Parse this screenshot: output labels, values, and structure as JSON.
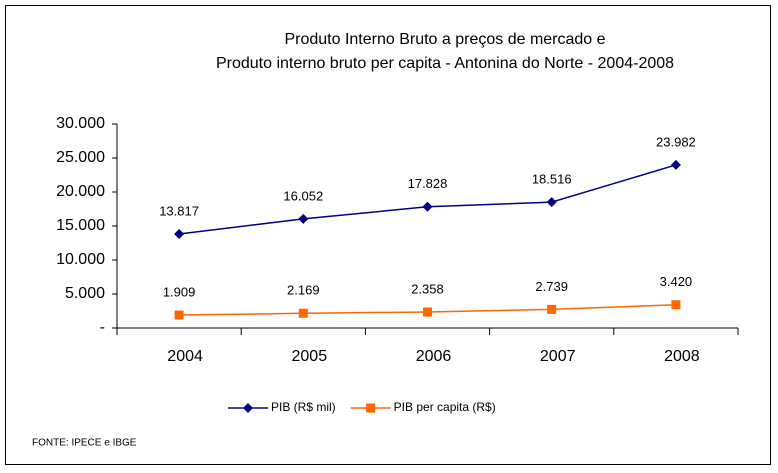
{
  "chart_data": {
    "type": "line",
    "title": [
      "Produto Interno Bruto a preços de mercado  e",
      "Produto interno bruto per capita - Antonina do Norte  - 2004-2008"
    ],
    "categories": [
      "2004",
      "2005",
      "2006",
      "2007",
      "2008"
    ],
    "series": [
      {
        "name": "PIB (R$ mil)",
        "color": "#000080",
        "marker": "diamond",
        "values": [
          13817,
          16052,
          17828,
          18516,
          23982
        ],
        "value_labels": [
          "13.817",
          "16.052",
          "17.828",
          "18.516",
          "23.982"
        ]
      },
      {
        "name": "PIB per capita (R$)",
        "color": "#ff6600",
        "marker": "square",
        "values": [
          1909,
          2169,
          2358,
          2739,
          3420
        ],
        "value_labels": [
          "1.909",
          "2.169",
          "2.358",
          "2.739",
          "3.420"
        ]
      }
    ],
    "ylim": [
      0,
      30000
    ],
    "yticks": [
      {
        "value": 0,
        "label": "-"
      },
      {
        "value": 5000,
        "label": "5.000"
      },
      {
        "value": 10000,
        "label": "10.000"
      },
      {
        "value": 15000,
        "label": "15.000"
      },
      {
        "value": 20000,
        "label": "20.000"
      },
      {
        "value": 25000,
        "label": "25.000"
      },
      {
        "value": 30000,
        "label": "30.000"
      }
    ],
    "legend": "bottom",
    "source": "FONTE: IPECE e IBGE"
  }
}
